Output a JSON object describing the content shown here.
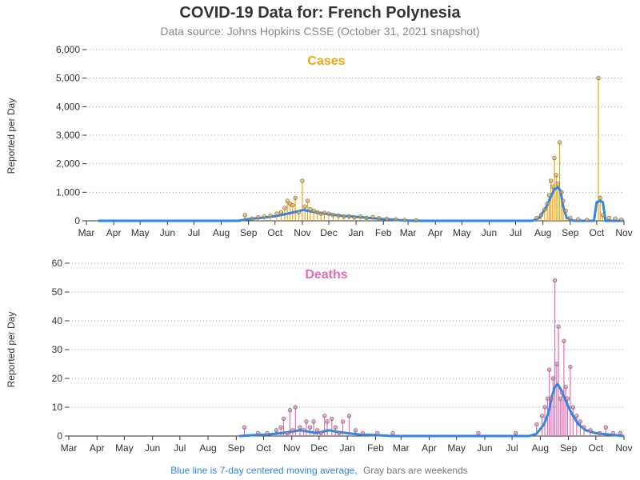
{
  "page": {
    "title": "COVID-19 Data for: French Polynesia",
    "subtitle": "Data source: Johns Hopkins CSSE (October 31, 2021 snapshot)"
  },
  "footnote": {
    "blue_text": "Blue line is 7-day centered moving average,",
    "gray_text": "Gray bars are weekends"
  },
  "colors": {
    "cases": "#F2A50C",
    "deaths": "#E66BB4",
    "moving_average": "#2E86E6",
    "marker_stroke": "#777777"
  },
  "chart_data": [
    {
      "type": "bar",
      "title": "Cases",
      "ylabel": "Reported per Day",
      "xlabel": "",
      "ylim": [
        0,
        6000
      ],
      "yticks": [
        0,
        1000,
        2000,
        3000,
        4000,
        5000,
        6000
      ],
      "ytick_labels": [
        "0",
        "1,000",
        "2,000",
        "3,000",
        "4,000",
        "5,000",
        "6,000"
      ],
      "xlim": [
        "2020-03-01",
        "2021-11-01"
      ],
      "xtick_labels": [
        "Mar",
        "Apr",
        "May",
        "Jun",
        "Jul",
        "Aug",
        "Sep",
        "Oct",
        "Nov",
        "Dec",
        "Jan",
        "Feb",
        "Mar",
        "Apr",
        "May",
        "Jun",
        "Jul",
        "Aug",
        "Sep",
        "Oct",
        "Nov"
      ],
      "grid": "horizontal dotted",
      "series": [
        {
          "name": "Reported per Day",
          "points": [
            [
              "2020-08-28",
              200
            ],
            [
              "2020-09-05",
              80
            ],
            [
              "2020-09-12",
              120
            ],
            [
              "2020-09-19",
              150
            ],
            [
              "2020-09-26",
              180
            ],
            [
              "2020-10-03",
              250
            ],
            [
              "2020-10-08",
              300
            ],
            [
              "2020-10-12",
              450
            ],
            [
              "2020-10-15",
              700
            ],
            [
              "2020-10-18",
              600
            ],
            [
              "2020-10-21",
              550
            ],
            [
              "2020-10-24",
              800
            ],
            [
              "2020-10-28",
              300
            ],
            [
              "2020-11-01",
              1400
            ],
            [
              "2020-11-04",
              500
            ],
            [
              "2020-11-07",
              700
            ],
            [
              "2020-11-10",
              400
            ],
            [
              "2020-11-14",
              350
            ],
            [
              "2020-11-18",
              300
            ],
            [
              "2020-11-22",
              250
            ],
            [
              "2020-11-26",
              280
            ],
            [
              "2020-12-01",
              250
            ],
            [
              "2020-12-06",
              200
            ],
            [
              "2020-12-12",
              180
            ],
            [
              "2020-12-18",
              150
            ],
            [
              "2020-12-24",
              160
            ],
            [
              "2020-12-30",
              120
            ],
            [
              "2021-01-06",
              150
            ],
            [
              "2021-01-13",
              100
            ],
            [
              "2021-01-20",
              130
            ],
            [
              "2021-01-27",
              90
            ],
            [
              "2021-02-05",
              70
            ],
            [
              "2021-02-15",
              50
            ],
            [
              "2021-02-25",
              30
            ],
            [
              "2021-03-10",
              20
            ],
            [
              "2021-07-25",
              100
            ],
            [
              "2021-07-30",
              200
            ],
            [
              "2021-08-03",
              400
            ],
            [
              "2021-08-06",
              600
            ],
            [
              "2021-08-08",
              900
            ],
            [
              "2021-08-10",
              1400
            ],
            [
              "2021-08-12",
              1200
            ],
            [
              "2021-08-14",
              2200
            ],
            [
              "2021-08-16",
              1600
            ],
            [
              "2021-08-18",
              1300
            ],
            [
              "2021-08-20",
              2750
            ],
            [
              "2021-08-22",
              1000
            ],
            [
              "2021-08-24",
              700
            ],
            [
              "2021-08-27",
              350
            ],
            [
              "2021-09-01",
              100
            ],
            [
              "2021-09-10",
              50
            ],
            [
              "2021-09-20",
              30
            ],
            [
              "2021-10-03",
              5000
            ],
            [
              "2021-10-05",
              800
            ],
            [
              "2021-10-08",
              200
            ],
            [
              "2021-10-15",
              100
            ],
            [
              "2021-10-22",
              80
            ],
            [
              "2021-10-29",
              40
            ]
          ]
        },
        {
          "name": "7-day centered moving average",
          "points": [
            [
              "2020-03-15",
              0
            ],
            [
              "2020-08-20",
              0
            ],
            [
              "2020-09-01",
              60
            ],
            [
              "2020-09-15",
              100
            ],
            [
              "2020-10-01",
              160
            ],
            [
              "2020-10-15",
              250
            ],
            [
              "2020-10-25",
              320
            ],
            [
              "2020-11-02",
              380
            ],
            [
              "2020-11-10",
              330
            ],
            [
              "2020-11-20",
              280
            ],
            [
              "2020-12-01",
              230
            ],
            [
              "2020-12-15",
              180
            ],
            [
              "2021-01-01",
              140
            ],
            [
              "2021-01-15",
              100
            ],
            [
              "2021-02-01",
              60
            ],
            [
              "2021-02-20",
              20
            ],
            [
              "2021-03-10",
              0
            ],
            [
              "2021-07-20",
              0
            ],
            [
              "2021-07-28",
              100
            ],
            [
              "2021-08-05",
              500
            ],
            [
              "2021-08-10",
              850
            ],
            [
              "2021-08-14",
              1100
            ],
            [
              "2021-08-18",
              1180
            ],
            [
              "2021-08-21",
              1050
            ],
            [
              "2021-08-24",
              500
            ],
            [
              "2021-08-28",
              100
            ],
            [
              "2021-09-05",
              0
            ],
            [
              "2021-09-28",
              0
            ],
            [
              "2021-10-01",
              650
            ],
            [
              "2021-10-05",
              700
            ],
            [
              "2021-10-08",
              650
            ],
            [
              "2021-10-11",
              0
            ],
            [
              "2021-10-31",
              0
            ]
          ]
        }
      ]
    },
    {
      "type": "bar",
      "title": "Deaths",
      "ylabel": "Reported per Day",
      "xlabel": "",
      "ylim": [
        0,
        60
      ],
      "yticks": [
        0,
        10,
        20,
        30,
        40,
        50,
        60
      ],
      "ytick_labels": [
        "0",
        "10",
        "20",
        "30",
        "40",
        "50",
        "60"
      ],
      "xlim": [
        "2020-03-01",
        "2021-11-01"
      ],
      "xtick_labels": [
        "Mar",
        "Apr",
        "May",
        "Jun",
        "Jul",
        "Aug",
        "Sep",
        "Oct",
        "Nov",
        "Dec",
        "Jan",
        "Feb",
        "Mar",
        "Apr",
        "May",
        "Jun",
        "Jul",
        "Aug",
        "Sep",
        "Oct",
        "Nov"
      ],
      "grid": "horizontal dotted",
      "series": [
        {
          "name": "Reported per Day",
          "points": [
            [
              "2020-09-10",
              3
            ],
            [
              "2020-09-25",
              1
            ],
            [
              "2020-10-05",
              1
            ],
            [
              "2020-10-15",
              2
            ],
            [
              "2020-10-20",
              3
            ],
            [
              "2020-10-23",
              6
            ],
            [
              "2020-10-27",
              1
            ],
            [
              "2020-10-30",
              9
            ],
            [
              "2020-11-02",
              2
            ],
            [
              "2020-11-05",
              10
            ],
            [
              "2020-11-10",
              3
            ],
            [
              "2020-11-14",
              2
            ],
            [
              "2020-11-17",
              5
            ],
            [
              "2020-11-21",
              3
            ],
            [
              "2020-11-25",
              5
            ],
            [
              "2020-11-29",
              2
            ],
            [
              "2020-12-03",
              1
            ],
            [
              "2020-12-07",
              7
            ],
            [
              "2020-12-10",
              5
            ],
            [
              "2020-12-15",
              6
            ],
            [
              "2020-12-19",
              3
            ],
            [
              "2020-12-23",
              1
            ],
            [
              "2020-12-27",
              5
            ],
            [
              "2021-01-03",
              7
            ],
            [
              "2021-01-10",
              2
            ],
            [
              "2021-01-18",
              1
            ],
            [
              "2021-02-03",
              1
            ],
            [
              "2021-02-20",
              1
            ],
            [
              "2021-05-25",
              1
            ],
            [
              "2021-07-05",
              1
            ],
            [
              "2021-07-28",
              4
            ],
            [
              "2021-08-03",
              7
            ],
            [
              "2021-08-06",
              10
            ],
            [
              "2021-08-09",
              13
            ],
            [
              "2021-08-11",
              23
            ],
            [
              "2021-08-13",
              13
            ],
            [
              "2021-08-15",
              20
            ],
            [
              "2021-08-17",
              54
            ],
            [
              "2021-08-19",
              25
            ],
            [
              "2021-08-21",
              38
            ],
            [
              "2021-08-23",
              13
            ],
            [
              "2021-08-25",
              15
            ],
            [
              "2021-08-27",
              33
            ],
            [
              "2021-08-29",
              17
            ],
            [
              "2021-08-31",
              13
            ],
            [
              "2021-09-03",
              24
            ],
            [
              "2021-09-06",
              10
            ],
            [
              "2021-09-10",
              7
            ],
            [
              "2021-09-14",
              5
            ],
            [
              "2021-09-18",
              3
            ],
            [
              "2021-09-25",
              2
            ],
            [
              "2021-10-05",
              1
            ],
            [
              "2021-10-12",
              3
            ],
            [
              "2021-10-20",
              1
            ],
            [
              "2021-10-28",
              1
            ]
          ]
        },
        {
          "name": "7-day centered moving average",
          "points": [
            [
              "2020-09-05",
              0
            ],
            [
              "2020-09-20",
              0.3
            ],
            [
              "2020-10-05",
              0.5
            ],
            [
              "2020-10-20",
              1
            ],
            [
              "2020-11-01",
              1.5
            ],
            [
              "2020-11-10",
              2
            ],
            [
              "2020-11-20",
              1.5
            ],
            [
              "2020-11-28",
              1
            ],
            [
              "2020-12-05",
              1.5
            ],
            [
              "2020-12-12",
              2
            ],
            [
              "2020-12-20",
              1.5
            ],
            [
              "2021-01-01",
              1
            ],
            [
              "2021-01-15",
              0.5
            ],
            [
              "2021-02-01",
              0.3
            ],
            [
              "2021-02-20",
              0
            ],
            [
              "2021-07-20",
              0
            ],
            [
              "2021-07-28",
              0.8
            ],
            [
              "2021-08-05",
              4
            ],
            [
              "2021-08-10",
              8
            ],
            [
              "2021-08-14",
              14
            ],
            [
              "2021-08-17",
              17
            ],
            [
              "2021-08-20",
              18
            ],
            [
              "2021-08-24",
              16
            ],
            [
              "2021-08-28",
              13
            ],
            [
              "2021-09-01",
              10
            ],
            [
              "2021-09-06",
              7
            ],
            [
              "2021-09-12",
              4
            ],
            [
              "2021-09-20",
              2
            ],
            [
              "2021-10-01",
              1
            ],
            [
              "2021-10-15",
              0.5
            ],
            [
              "2021-10-31",
              0
            ]
          ]
        }
      ]
    }
  ]
}
